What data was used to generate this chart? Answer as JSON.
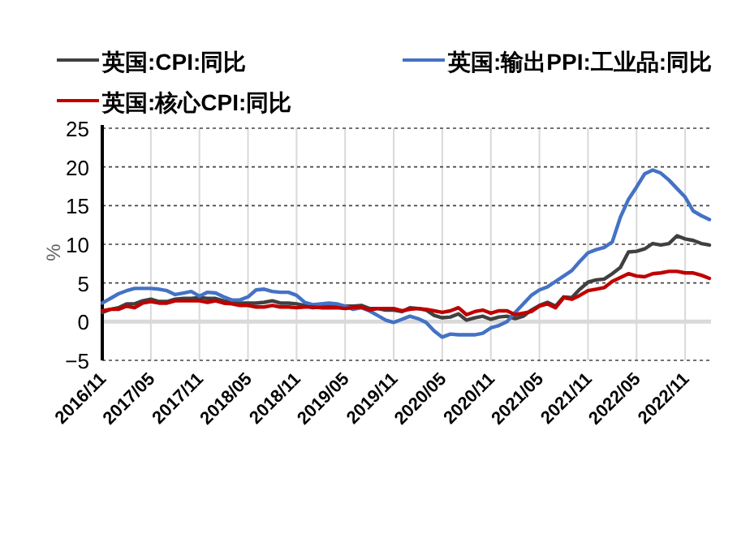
{
  "chart_data": {
    "type": "line",
    "ylabel": "%",
    "x": [
      "2016-11",
      "2016-12",
      "2017-01",
      "2017-02",
      "2017-03",
      "2017-04",
      "2017-05",
      "2017-06",
      "2017-07",
      "2017-08",
      "2017-09",
      "2017-10",
      "2017-11",
      "2017-12",
      "2018-01",
      "2018-02",
      "2018-03",
      "2018-04",
      "2018-05",
      "2018-06",
      "2018-07",
      "2018-08",
      "2018-09",
      "2018-10",
      "2018-11",
      "2018-12",
      "2019-01",
      "2019-02",
      "2019-03",
      "2019-04",
      "2019-05",
      "2019-06",
      "2019-07",
      "2019-08",
      "2019-09",
      "2019-10",
      "2019-11",
      "2019-12",
      "2020-01",
      "2020-02",
      "2020-03",
      "2020-04",
      "2020-05",
      "2020-06",
      "2020-07",
      "2020-08",
      "2020-09",
      "2020-10",
      "2020-11",
      "2020-12",
      "2021-01",
      "2021-02",
      "2021-03",
      "2021-04",
      "2021-05",
      "2021-06",
      "2021-07",
      "2021-08",
      "2021-09",
      "2021-10",
      "2021-11",
      "2021-12",
      "2022-01",
      "2022-02",
      "2022-03",
      "2022-04",
      "2022-05",
      "2022-06",
      "2022-07",
      "2022-08",
      "2022-09",
      "2022-10",
      "2022-11",
      "2022-12",
      "2023-01",
      "2023-02"
    ],
    "series": [
      {
        "name": "英国:CPI:同比",
        "color": "#404040",
        "values": [
          1.2,
          1.6,
          1.8,
          2.3,
          2.3,
          2.7,
          2.9,
          2.6,
          2.6,
          2.9,
          3.0,
          3.0,
          3.1,
          3.0,
          3.0,
          2.7,
          2.5,
          2.4,
          2.4,
          2.4,
          2.5,
          2.7,
          2.4,
          2.4,
          2.3,
          2.1,
          1.8,
          1.9,
          1.9,
          2.1,
          2.0,
          2.0,
          2.1,
          1.7,
          1.7,
          1.5,
          1.5,
          1.3,
          1.8,
          1.7,
          1.5,
          0.8,
          0.5,
          0.6,
          1.0,
          0.2,
          0.5,
          0.7,
          0.3,
          0.6,
          0.7,
          0.4,
          0.7,
          1.5,
          2.1,
          2.5,
          2.0,
          3.2,
          3.1,
          4.2,
          5.1,
          5.4,
          5.5,
          6.2,
          7.0,
          9.0,
          9.1,
          9.4,
          10.1,
          9.9,
          10.1,
          11.1,
          10.7,
          10.5,
          10.1,
          9.9
        ]
      },
      {
        "name": "英国:输出PPI:工业品:同比",
        "color": "#4472c4",
        "values": [
          2.4,
          3.0,
          3.6,
          4.0,
          4.3,
          4.3,
          4.3,
          4.2,
          4.0,
          3.5,
          3.7,
          3.9,
          3.3,
          3.8,
          3.7,
          3.2,
          2.8,
          2.8,
          3.2,
          4.1,
          4.2,
          3.9,
          3.8,
          3.8,
          3.4,
          2.5,
          2.2,
          2.3,
          2.4,
          2.3,
          2.0,
          1.6,
          1.8,
          1.4,
          0.8,
          0.2,
          -0.1,
          0.3,
          0.7,
          0.4,
          -0.1,
          -1.2,
          -2.0,
          -1.6,
          -1.7,
          -1.7,
          -1.7,
          -1.5,
          -0.8,
          -0.5,
          0.0,
          1.2,
          2.3,
          3.4,
          4.1,
          4.5,
          5.2,
          5.9,
          6.6,
          7.8,
          8.9,
          9.3,
          9.6,
          10.3,
          13.5,
          15.8,
          17.4,
          19.1,
          19.6,
          19.2,
          18.3,
          17.2,
          16.1,
          14.3,
          13.7,
          13.2
        ]
      },
      {
        "name": "英国:核心CPI:同比",
        "color": "#c00000",
        "values": [
          1.4,
          1.6,
          1.6,
          2.0,
          1.8,
          2.4,
          2.6,
          2.4,
          2.4,
          2.7,
          2.7,
          2.7,
          2.7,
          2.5,
          2.7,
          2.4,
          2.3,
          2.1,
          2.1,
          1.9,
          1.9,
          2.1,
          1.9,
          1.9,
          1.8,
          1.9,
          1.9,
          1.8,
          1.8,
          1.8,
          1.7,
          1.8,
          1.9,
          1.5,
          1.7,
          1.7,
          1.7,
          1.4,
          1.6,
          1.7,
          1.6,
          1.4,
          1.2,
          1.4,
          1.8,
          0.9,
          1.3,
          1.5,
          1.1,
          1.4,
          1.4,
          0.9,
          1.1,
          1.3,
          2.0,
          2.3,
          1.8,
          3.1,
          2.9,
          3.4,
          4.0,
          4.2,
          4.4,
          5.2,
          5.7,
          6.2,
          5.9,
          5.8,
          6.2,
          6.3,
          6.5,
          6.5,
          6.3,
          6.3,
          6.0,
          5.6
        ]
      }
    ],
    "xlim": [
      "2016-11",
      "2023-02"
    ],
    "xticks": [
      {
        "value": "2016-11",
        "label": "2016/11"
      },
      {
        "value": "2017-05",
        "label": "2017/05"
      },
      {
        "value": "2017-11",
        "label": "2017/11"
      },
      {
        "value": "2018-05",
        "label": "2018/05"
      },
      {
        "value": "2018-11",
        "label": "2018/11"
      },
      {
        "value": "2019-05",
        "label": "2019/05"
      },
      {
        "value": "2019-11",
        "label": "2019/11"
      },
      {
        "value": "2020-05",
        "label": "2020/05"
      },
      {
        "value": "2020-11",
        "label": "2020/11"
      },
      {
        "value": "2021-05",
        "label": "2021/05"
      },
      {
        "value": "2021-11",
        "label": "2021/11"
      },
      {
        "value": "2022-05",
        "label": "2022/05"
      },
      {
        "value": "2022-11",
        "label": "2022/11"
      }
    ],
    "ylim": [
      -5,
      25
    ],
    "yticks": [
      -5,
      0,
      5,
      10,
      15,
      20,
      25
    ],
    "grid": true,
    "legend": "top",
    "marker": "none",
    "line_style": "solid"
  }
}
